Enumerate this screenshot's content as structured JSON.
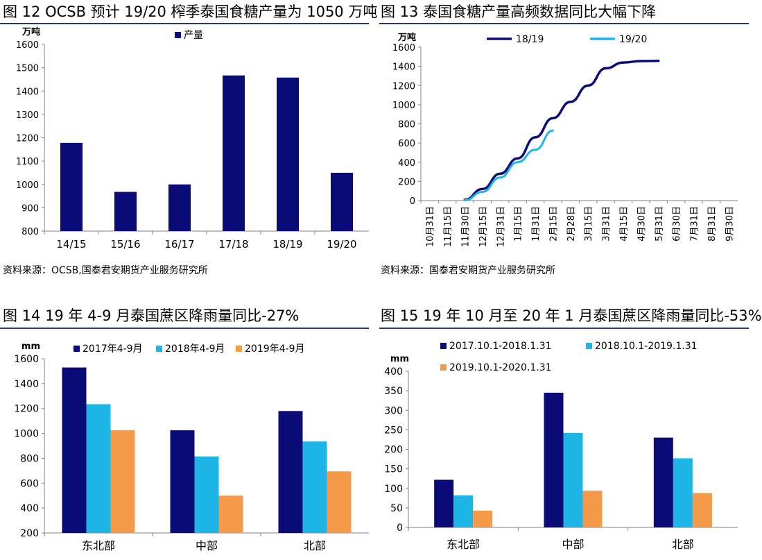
{
  "panels": [
    {
      "title": "图 12 OCSB 预计 19/20 榨季泰国食糖产量为 1050 万吨",
      "source": "资料来源：OCSB,国泰君安期货产业服务研究所"
    },
    {
      "title": "图 13 泰国食糖产量高频数据同比大幅下降",
      "source": "资料来源：国泰君安期货产业服务研究所"
    },
    {
      "title": "图 14 19 年 4-9 月泰国蔗区降雨量同比-27%",
      "source": ""
    },
    {
      "title": "图 15 19 年 10 月至 20 年 1 月泰国蔗区降雨量同比-53%",
      "source": ""
    }
  ],
  "chart_data": [
    {
      "type": "bar",
      "ylabel": "万吨",
      "ylim": [
        800,
        1600
      ],
      "yticks": [
        800,
        900,
        1000,
        1100,
        1200,
        1300,
        1400,
        1500,
        1600
      ],
      "categories": [
        "14/15",
        "15/16",
        "16/17",
        "17/18",
        "18/19",
        "19/20"
      ],
      "series": [
        {
          "name": "产量",
          "color": "#0b0b78",
          "values": [
            1178,
            968,
            1000,
            1467,
            1458,
            1050
          ]
        }
      ],
      "legend": "top-center"
    },
    {
      "type": "line",
      "ylabel": "万吨",
      "ylim": [
        0,
        1600
      ],
      "yticks": [
        0,
        200,
        400,
        600,
        800,
        1000,
        1200,
        1400,
        1600
      ],
      "x": [
        "10月31日",
        "11月15日",
        "11月30日",
        "12月15日",
        "12月31日",
        "1月15日",
        "1月31日",
        "2月15日",
        "2月28日",
        "3月15日",
        "3月31日",
        "4月15日",
        "4月30日",
        "5月31日",
        "6月30日",
        "7月31日",
        "8月31日",
        "9月30日"
      ],
      "series": [
        {
          "name": "18/19",
          "color": "#0b0b78",
          "values": [
            null,
            null,
            8,
            120,
            280,
            440,
            660,
            860,
            1030,
            1200,
            1380,
            1440,
            1455,
            1458,
            null,
            null,
            null,
            null
          ]
        },
        {
          "name": "19/20",
          "color": "#1fb4e6",
          "values": [
            null,
            null,
            3,
            90,
            240,
            400,
            530,
            730,
            null,
            null,
            null,
            null,
            null,
            null,
            null,
            null,
            null,
            null
          ]
        }
      ],
      "legend": "top-center"
    },
    {
      "type": "bar",
      "ylabel": "mm",
      "ylim": [
        200,
        1600
      ],
      "yticks": [
        200,
        400,
        600,
        800,
        1000,
        1200,
        1400,
        1600
      ],
      "categories": [
        "东北部",
        "中部",
        "北部"
      ],
      "series": [
        {
          "name": "2017年4-9月",
          "color": "#0b0b78",
          "values": [
            1530,
            1025,
            1180
          ]
        },
        {
          "name": "2018年4-9月",
          "color": "#1fb4e6",
          "values": [
            1235,
            815,
            935
          ]
        },
        {
          "name": "2019年4-9月",
          "color": "#f59a4a",
          "values": [
            1025,
            500,
            695
          ]
        }
      ],
      "legend": "top-center"
    },
    {
      "type": "bar",
      "ylabel": "mm",
      "ylim": [
        0,
        400
      ],
      "yticks": [
        0,
        50,
        100,
        150,
        200,
        250,
        300,
        350,
        400
      ],
      "categories": [
        "东北部",
        "中部",
        "北部"
      ],
      "series": [
        {
          "name": "2017.10.1-2018.1.31",
          "color": "#0b0b78",
          "values": [
            122,
            345,
            230
          ]
        },
        {
          "name": "2018.10.1-2019.1.31",
          "color": "#1fb4e6",
          "values": [
            82,
            242,
            177
          ]
        },
        {
          "name": "2019.10.1-2020.1.31",
          "color": "#f59a4a",
          "values": [
            43,
            94,
            88
          ]
        }
      ],
      "legend": "top"
    }
  ]
}
